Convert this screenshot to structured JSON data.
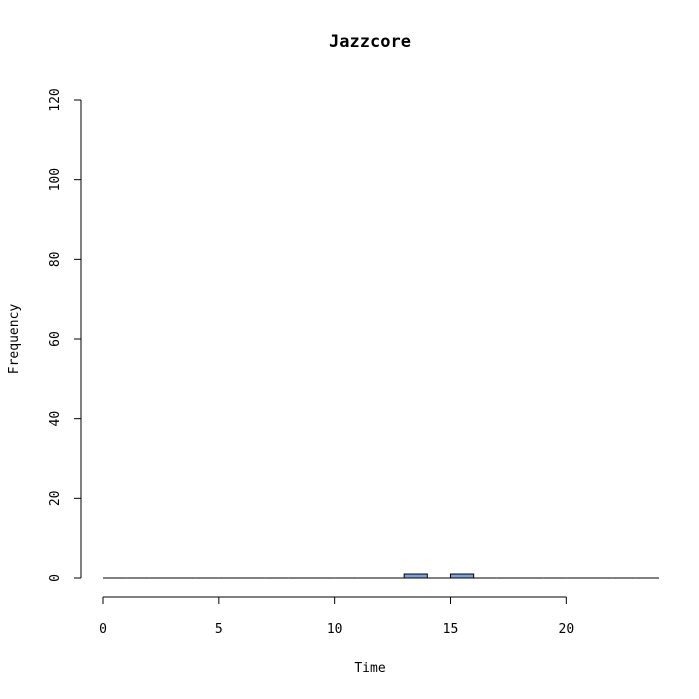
{
  "chart_data": {
    "type": "bar",
    "title": "Jazzcore",
    "xlabel": "Time",
    "ylabel": "Frequency",
    "xlim": [
      0,
      24
    ],
    "ylim": [
      0,
      120
    ],
    "x_ticks": [
      0,
      5,
      10,
      15,
      20
    ],
    "y_ticks": [
      0,
      20,
      40,
      60,
      80,
      100,
      120
    ],
    "bins": [
      {
        "start": 0,
        "end": 1,
        "value": 0
      },
      {
        "start": 1,
        "end": 2,
        "value": 0
      },
      {
        "start": 2,
        "end": 3,
        "value": 0
      },
      {
        "start": 3,
        "end": 4,
        "value": 0
      },
      {
        "start": 4,
        "end": 5,
        "value": 0
      },
      {
        "start": 5,
        "end": 6,
        "value": 0
      },
      {
        "start": 6,
        "end": 7,
        "value": 0
      },
      {
        "start": 7,
        "end": 8,
        "value": 0
      },
      {
        "start": 8,
        "end": 9,
        "value": 0
      },
      {
        "start": 9,
        "end": 10,
        "value": 0
      },
      {
        "start": 10,
        "end": 11,
        "value": 0
      },
      {
        "start": 11,
        "end": 12,
        "value": 0
      },
      {
        "start": 12,
        "end": 13,
        "value": 0
      },
      {
        "start": 13,
        "end": 14,
        "value": 1
      },
      {
        "start": 14,
        "end": 15,
        "value": 0
      },
      {
        "start": 15,
        "end": 16,
        "value": 1
      },
      {
        "start": 16,
        "end": 17,
        "value": 0
      },
      {
        "start": 17,
        "end": 18,
        "value": 0
      },
      {
        "start": 18,
        "end": 19,
        "value": 0
      },
      {
        "start": 19,
        "end": 20,
        "value": 0
      },
      {
        "start": 20,
        "end": 21,
        "value": 0
      },
      {
        "start": 21,
        "end": 22,
        "value": 0
      },
      {
        "start": 22,
        "end": 23,
        "value": 0
      },
      {
        "start": 23,
        "end": 24,
        "value": 0
      }
    ],
    "grid": false,
    "legend": "none",
    "bar_color": "#7ba3d9"
  }
}
